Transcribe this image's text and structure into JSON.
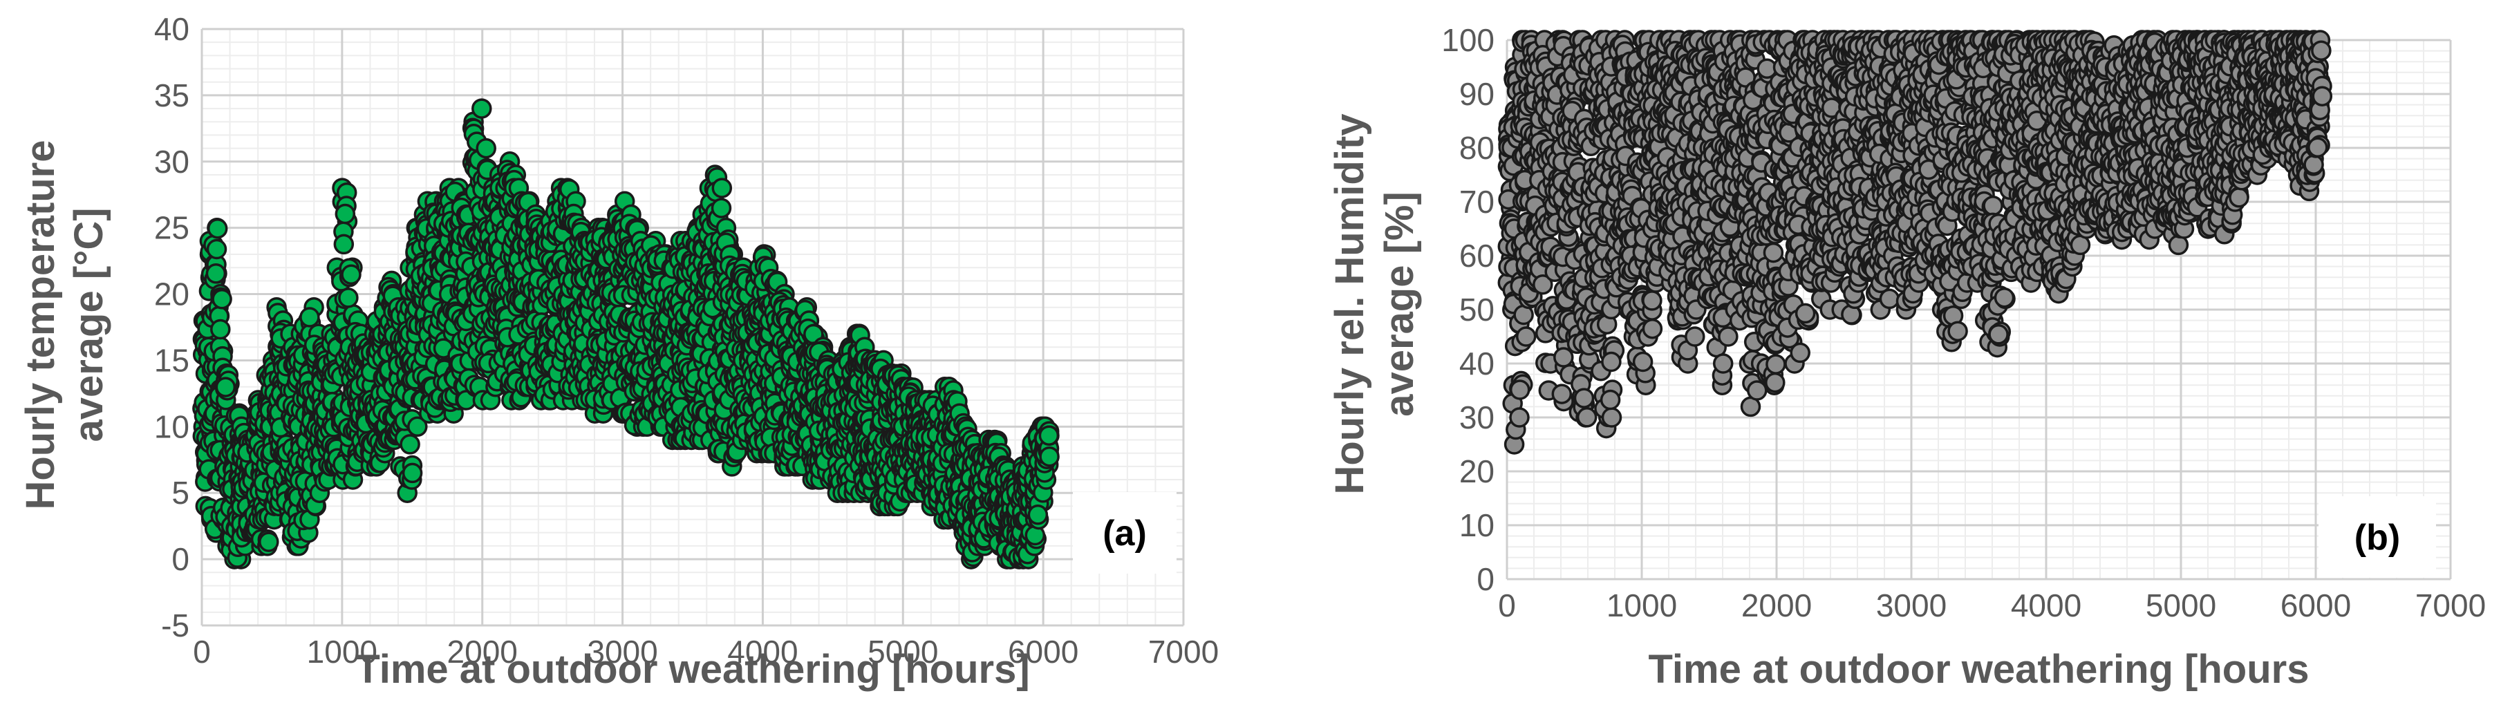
{
  "chart_data": [
    {
      "type": "scatter",
      "panel_label": "(a)",
      "title": "",
      "xlabel": "Time at outdoor weathering [hours]",
      "ylabel_lines": [
        "Hourly temperature",
        "average [°C]"
      ],
      "xlim": [
        0,
        7000
      ],
      "ylim": [
        -5,
        40
      ],
      "x_ticks": [
        "0",
        "1000",
        "2000",
        "3000",
        "4000",
        "5000",
        "6000",
        "7000"
      ],
      "y_ticks": [
        "-5",
        "0",
        "5",
        "10",
        "15",
        "20",
        "25",
        "30",
        "35",
        "40"
      ],
      "x_minor_step": 200,
      "y_minor_step": 1,
      "grid": true,
      "legend": "none",
      "marker_fill": "#00b050",
      "marker_edge": "#1a1a1a",
      "series": [
        {
          "x": [
            0,
            40,
            80,
            120,
            160,
            200,
            240,
            280,
            320,
            360,
            400,
            440,
            480,
            520,
            560,
            600,
            640,
            680,
            720,
            760,
            800,
            840,
            880,
            920,
            960,
            1000,
            1040,
            1080,
            1120,
            1160,
            1200,
            1240,
            1280,
            1320,
            1360,
            1400,
            1440,
            1480,
            1520,
            1560,
            1600,
            1640,
            1680,
            1720,
            1760,
            1800,
            1840,
            1880,
            1920,
            1960,
            2000,
            2040,
            2080,
            2120,
            2160,
            2200,
            2240,
            2280,
            2320,
            2360,
            2400,
            2440,
            2480,
            2520,
            2560,
            2600,
            2640,
            2680,
            2720,
            2760,
            2800,
            2840,
            2880,
            2920,
            2960,
            3000,
            3040,
            3080,
            3120,
            3160,
            3200,
            3240,
            3280,
            3320,
            3360,
            3400,
            3440,
            3480,
            3520,
            3560,
            3600,
            3640,
            3680,
            3720,
            3760,
            3800,
            3840,
            3880,
            3920,
            3960,
            4000,
            4040,
            4080,
            4120,
            4160,
            4200,
            4240,
            4280,
            4320,
            4360,
            4400,
            4440,
            4480,
            4520,
            4560,
            4600,
            4640,
            4680,
            4720,
            4760,
            4800,
            4840,
            4880,
            4920,
            4960,
            5000,
            5040,
            5080,
            5120,
            5160,
            5200,
            5240,
            5280,
            5320,
            5360,
            5400,
            5440,
            5480,
            5520,
            5560,
            5600,
            5640,
            5680,
            5720,
            5760,
            5800,
            5840,
            5880,
            5920,
            5960,
            6000,
            6040
          ],
          "y_min": [
            4,
            3,
            2,
            3,
            1,
            0,
            0,
            1,
            2,
            2,
            1,
            1,
            3,
            4,
            5,
            3,
            1,
            1,
            2,
            3,
            4,
            5,
            6,
            7,
            7,
            6,
            6,
            7,
            8,
            8,
            7,
            7,
            8,
            9,
            9,
            7,
            5,
            6,
            10,
            12,
            11,
            11,
            12,
            12,
            11,
            12,
            12,
            12,
            13,
            13,
            12,
            12,
            13,
            14,
            13,
            12,
            12,
            13,
            13,
            13,
            12,
            12,
            12,
            13,
            12,
            12,
            13,
            12,
            12,
            12,
            11,
            11,
            12,
            12,
            11,
            11,
            11,
            10,
            10,
            10,
            11,
            10,
            10,
            9,
            9,
            9,
            9,
            9,
            9,
            9,
            9,
            8,
            8,
            8,
            7,
            8,
            9,
            9,
            8,
            8,
            8,
            8,
            8,
            7,
            7,
            7,
            7,
            7,
            6,
            6,
            6,
            6,
            6,
            5,
            5,
            5,
            5,
            5,
            5,
            5,
            4,
            4,
            4,
            4,
            4,
            5,
            5,
            5,
            5,
            5,
            4,
            4,
            3,
            3,
            3,
            2,
            1,
            0,
            1,
            1,
            2,
            2,
            1,
            0,
            0,
            0,
            0,
            0,
            1,
            3,
            6,
            7
          ],
          "y_max": [
            18,
            24,
            25,
            20,
            14,
            10,
            11,
            10,
            9,
            11,
            12,
            14,
            15,
            19,
            18,
            17,
            16,
            17,
            18,
            19,
            17,
            16,
            15,
            17,
            22,
            28,
            22,
            18,
            17,
            16,
            17,
            18,
            19,
            21,
            20,
            19,
            19,
            22,
            25,
            26,
            27,
            27,
            26,
            27,
            28,
            28,
            27,
            26,
            33,
            34,
            31,
            28,
            27,
            29,
            30,
            29,
            28,
            27,
            27,
            26,
            25,
            25,
            26,
            27,
            28,
            28,
            27,
            25,
            24,
            24,
            25,
            25,
            24,
            25,
            26,
            27,
            26,
            25,
            24,
            23,
            24,
            23,
            23,
            22,
            23,
            24,
            24,
            24,
            25,
            26,
            28,
            29,
            28,
            25,
            23,
            22,
            22,
            21,
            21,
            22,
            23,
            22,
            21,
            20,
            19,
            18,
            18,
            19,
            18,
            17,
            16,
            15,
            14,
            14,
            15,
            16,
            17,
            17,
            16,
            15,
            15,
            15,
            14,
            14,
            14,
            13,
            13,
            12,
            12,
            12,
            12,
            11,
            13,
            13,
            12,
            11,
            10,
            9,
            8,
            8,
            9,
            9,
            8,
            7,
            6,
            6,
            7,
            8,
            9,
            10,
            10,
            10
          ]
        }
      ]
    },
    {
      "type": "scatter",
      "panel_label": "(b)",
      "title": "",
      "xlabel": "Time at outdoor weathering [hours",
      "ylabel_lines": [
        "Hourly rel. Humidity",
        "average [%]"
      ],
      "xlim": [
        0,
        7000
      ],
      "ylim": [
        0,
        100
      ],
      "x_ticks": [
        "0",
        "1000",
        "2000",
        "3000",
        "4000",
        "5000",
        "6000",
        "7000"
      ],
      "y_ticks": [
        "0",
        "10",
        "20",
        "30",
        "40",
        "50",
        "60",
        "70",
        "80",
        "90",
        "100"
      ],
      "x_minor_step": 200,
      "y_minor_step": 2,
      "grid": true,
      "legend": "none",
      "marker_fill": "#8c8c8c",
      "marker_edge": "#1a1a1a",
      "series": [
        {
          "x": [
            0,
            40,
            80,
            120,
            160,
            200,
            240,
            280,
            320,
            360,
            400,
            440,
            480,
            520,
            560,
            600,
            640,
            680,
            720,
            760,
            800,
            840,
            880,
            920,
            960,
            1000,
            1040,
            1080,
            1120,
            1160,
            1200,
            1240,
            1280,
            1320,
            1360,
            1400,
            1440,
            1480,
            1520,
            1560,
            1600,
            1640,
            1680,
            1720,
            1760,
            1800,
            1840,
            1880,
            1920,
            1960,
            2000,
            2040,
            2080,
            2120,
            2160,
            2200,
            2240,
            2280,
            2320,
            2360,
            2400,
            2440,
            2480,
            2520,
            2560,
            2600,
            2640,
            2680,
            2720,
            2760,
            2800,
            2840,
            2880,
            2920,
            2960,
            3000,
            3040,
            3080,
            3120,
            3160,
            3200,
            3240,
            3280,
            3320,
            3360,
            3400,
            3440,
            3480,
            3520,
            3560,
            3600,
            3640,
            3680,
            3720,
            3760,
            3800,
            3840,
            3880,
            3920,
            3960,
            4000,
            4040,
            4080,
            4120,
            4160,
            4200,
            4240,
            4280,
            4320,
            4360,
            4400,
            4440,
            4480,
            4520,
            4560,
            4600,
            4640,
            4680,
            4720,
            4760,
            4800,
            4840,
            4880,
            4920,
            4960,
            5000,
            5040,
            5080,
            5120,
            5160,
            5200,
            5240,
            5280,
            5320,
            5360,
            5400,
            5440,
            5480,
            5520,
            5560,
            5600,
            5640,
            5680,
            5720,
            5760,
            5800,
            5840,
            5880,
            5920,
            5960,
            6000,
            6040
          ],
          "y_min": [
            55,
            25,
            30,
            45,
            52,
            55,
            50,
            35,
            40,
            48,
            33,
            38,
            45,
            31,
            30,
            40,
            44,
            34,
            28,
            30,
            52,
            55,
            50,
            45,
            38,
            36,
            45,
            55,
            58,
            60,
            55,
            48,
            41,
            40,
            45,
            50,
            55,
            52,
            43,
            36,
            40,
            45,
            50,
            48,
            40,
            32,
            35,
            40,
            38,
            36,
            45,
            50,
            44,
            40,
            42,
            48,
            55,
            58,
            52,
            50,
            55,
            58,
            50,
            49,
            52,
            55,
            57,
            58,
            53,
            50,
            52,
            56,
            58,
            55,
            50,
            52,
            55,
            58,
            60,
            55,
            50,
            46,
            44,
            46,
            52,
            55,
            58,
            55,
            48,
            44,
            43,
            45,
            52,
            57,
            60,
            58,
            56,
            55,
            57,
            58,
            56,
            54,
            53,
            55,
            58,
            60,
            62,
            65,
            67,
            66,
            64,
            65,
            66,
            64,
            63,
            65,
            66,
            65,
            64,
            63,
            65,
            67,
            66,
            64,
            62,
            65,
            68,
            70,
            69,
            66,
            65,
            66,
            67,
            64,
            66,
            70,
            74,
            76,
            77,
            75,
            78,
            80,
            80,
            79,
            78,
            77,
            75,
            73,
            72,
            75,
            80,
            86
          ],
          "y_max": [
            85,
            95,
            100,
            100,
            100,
            98,
            100,
            96,
            93,
            100,
            100,
            97,
            94,
            100,
            100,
            99,
            97,
            100,
            100,
            98,
            100,
            100,
            96,
            94,
            97,
            100,
            100,
            98,
            100,
            100,
            100,
            100,
            98,
            100,
            100,
            100,
            99,
            100,
            100,
            100,
            98,
            100,
            100,
            100,
            97,
            100,
            100,
            100,
            100,
            99,
            100,
            100,
            100,
            98,
            100,
            100,
            100,
            99,
            100,
            100,
            100,
            100,
            100,
            99,
            100,
            100,
            100,
            100,
            100,
            99,
            100,
            100,
            100,
            100,
            100,
            100,
            100,
            99,
            100,
            100,
            100,
            100,
            100,
            100,
            99,
            100,
            100,
            100,
            100,
            100,
            100,
            100,
            100,
            100,
            100,
            99,
            100,
            100,
            100,
            100,
            100,
            100,
            100,
            100,
            100,
            100,
            100,
            100,
            100,
            98,
            97,
            98,
            99,
            97,
            96,
            98,
            99,
            100,
            100,
            100,
            100,
            98,
            99,
            100,
            100,
            100,
            100,
            100,
            100,
            100,
            100,
            100,
            100,
            100,
            100,
            100,
            100,
            100,
            100,
            100,
            100,
            100,
            100,
            100,
            100,
            100,
            100,
            100,
            100,
            100,
            100,
            100
          ]
        }
      ]
    }
  ]
}
